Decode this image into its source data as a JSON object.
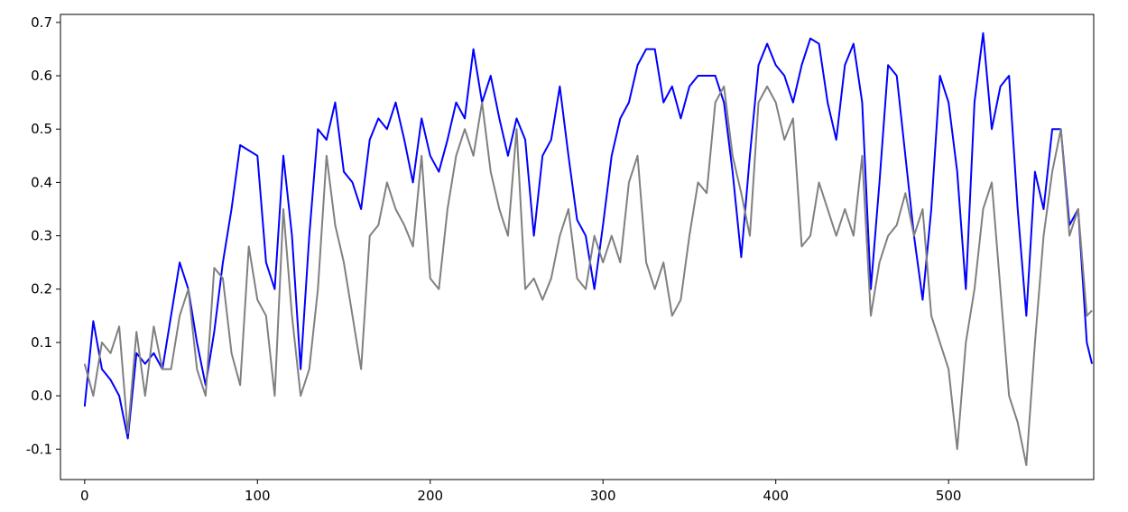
{
  "chart_data": {
    "type": "line",
    "x": [
      0,
      5,
      10,
      15,
      20,
      25,
      30,
      35,
      40,
      45,
      50,
      55,
      60,
      65,
      70,
      75,
      80,
      85,
      90,
      95,
      100,
      105,
      110,
      115,
      120,
      125,
      130,
      135,
      140,
      145,
      150,
      155,
      160,
      165,
      170,
      175,
      180,
      185,
      190,
      195,
      200,
      205,
      210,
      215,
      220,
      225,
      230,
      235,
      240,
      245,
      250,
      255,
      260,
      265,
      270,
      275,
      280,
      285,
      290,
      295,
      300,
      305,
      310,
      315,
      320,
      325,
      330,
      335,
      340,
      345,
      350,
      355,
      360,
      365,
      370,
      375,
      380,
      385,
      390,
      395,
      400,
      405,
      410,
      415,
      420,
      425,
      430,
      435,
      440,
      445,
      450,
      455,
      460,
      465,
      470,
      475,
      480,
      485,
      490,
      495,
      500,
      505,
      510,
      515,
      520,
      525,
      530,
      535,
      540,
      545,
      550,
      555,
      560,
      565,
      570,
      575,
      580,
      583
    ],
    "series": [
      {
        "color": "#0000ff",
        "values": [
          -0.02,
          0.14,
          0.05,
          0.03,
          0.0,
          -0.08,
          0.08,
          0.06,
          0.08,
          0.05,
          0.15,
          0.25,
          0.2,
          0.1,
          0.02,
          0.12,
          0.25,
          0.35,
          0.47,
          0.46,
          0.45,
          0.25,
          0.2,
          0.45,
          0.3,
          0.05,
          0.3,
          0.5,
          0.48,
          0.55,
          0.42,
          0.4,
          0.35,
          0.48,
          0.52,
          0.5,
          0.55,
          0.48,
          0.4,
          0.52,
          0.45,
          0.42,
          0.48,
          0.55,
          0.52,
          0.65,
          0.55,
          0.6,
          0.52,
          0.45,
          0.52,
          0.48,
          0.3,
          0.45,
          0.48,
          0.58,
          0.45,
          0.33,
          0.3,
          0.2,
          0.32,
          0.45,
          0.52,
          0.55,
          0.62,
          0.65,
          0.65,
          0.55,
          0.58,
          0.52,
          0.58,
          0.6,
          0.6,
          0.6,
          0.55,
          0.42,
          0.26,
          0.45,
          0.62,
          0.66,
          0.62,
          0.6,
          0.55,
          0.62,
          0.67,
          0.66,
          0.55,
          0.48,
          0.62,
          0.66,
          0.55,
          0.2,
          0.4,
          0.62,
          0.6,
          0.45,
          0.3,
          0.18,
          0.35,
          0.6,
          0.55,
          0.42,
          0.2,
          0.55,
          0.68,
          0.5,
          0.58,
          0.6,
          0.35,
          0.15,
          0.42,
          0.35,
          0.5,
          0.5,
          0.32,
          0.35,
          0.1,
          0.06
        ]
      },
      {
        "color": "#808080",
        "values": [
          0.06,
          0.0,
          0.1,
          0.08,
          0.13,
          -0.07,
          0.12,
          0.0,
          0.13,
          0.05,
          0.05,
          0.15,
          0.2,
          0.05,
          0.0,
          0.24,
          0.22,
          0.08,
          0.02,
          0.28,
          0.18,
          0.15,
          0.0,
          0.35,
          0.15,
          0.0,
          0.05,
          0.2,
          0.45,
          0.32,
          0.25,
          0.15,
          0.05,
          0.3,
          0.32,
          0.4,
          0.35,
          0.32,
          0.28,
          0.45,
          0.22,
          0.2,
          0.35,
          0.45,
          0.5,
          0.45,
          0.55,
          0.42,
          0.35,
          0.3,
          0.5,
          0.2,
          0.22,
          0.18,
          0.22,
          0.3,
          0.35,
          0.22,
          0.2,
          0.3,
          0.25,
          0.3,
          0.25,
          0.4,
          0.45,
          0.25,
          0.2,
          0.25,
          0.15,
          0.18,
          0.3,
          0.4,
          0.38,
          0.55,
          0.58,
          0.45,
          0.38,
          0.3,
          0.55,
          0.58,
          0.55,
          0.48,
          0.52,
          0.28,
          0.3,
          0.4,
          0.35,
          0.3,
          0.35,
          0.3,
          0.45,
          0.15,
          0.25,
          0.3,
          0.32,
          0.38,
          0.3,
          0.35,
          0.15,
          0.1,
          0.05,
          -0.1,
          0.1,
          0.2,
          0.35,
          0.4,
          0.2,
          0.0,
          -0.05,
          -0.13,
          0.1,
          0.3,
          0.42,
          0.5,
          0.3,
          0.35,
          0.15,
          0.16
        ]
      }
    ],
    "xlim": [
      -14,
      584
    ],
    "ylim": [
      -0.157,
      0.715
    ],
    "xticks": [
      0,
      100,
      200,
      300,
      400,
      500
    ],
    "yticks": [
      -0.1,
      {
        "value": 0,
        "label": "0.0"
      },
      0.1,
      0.2,
      0.3,
      0.4,
      0.5,
      0.6,
      0.7
    ]
  }
}
